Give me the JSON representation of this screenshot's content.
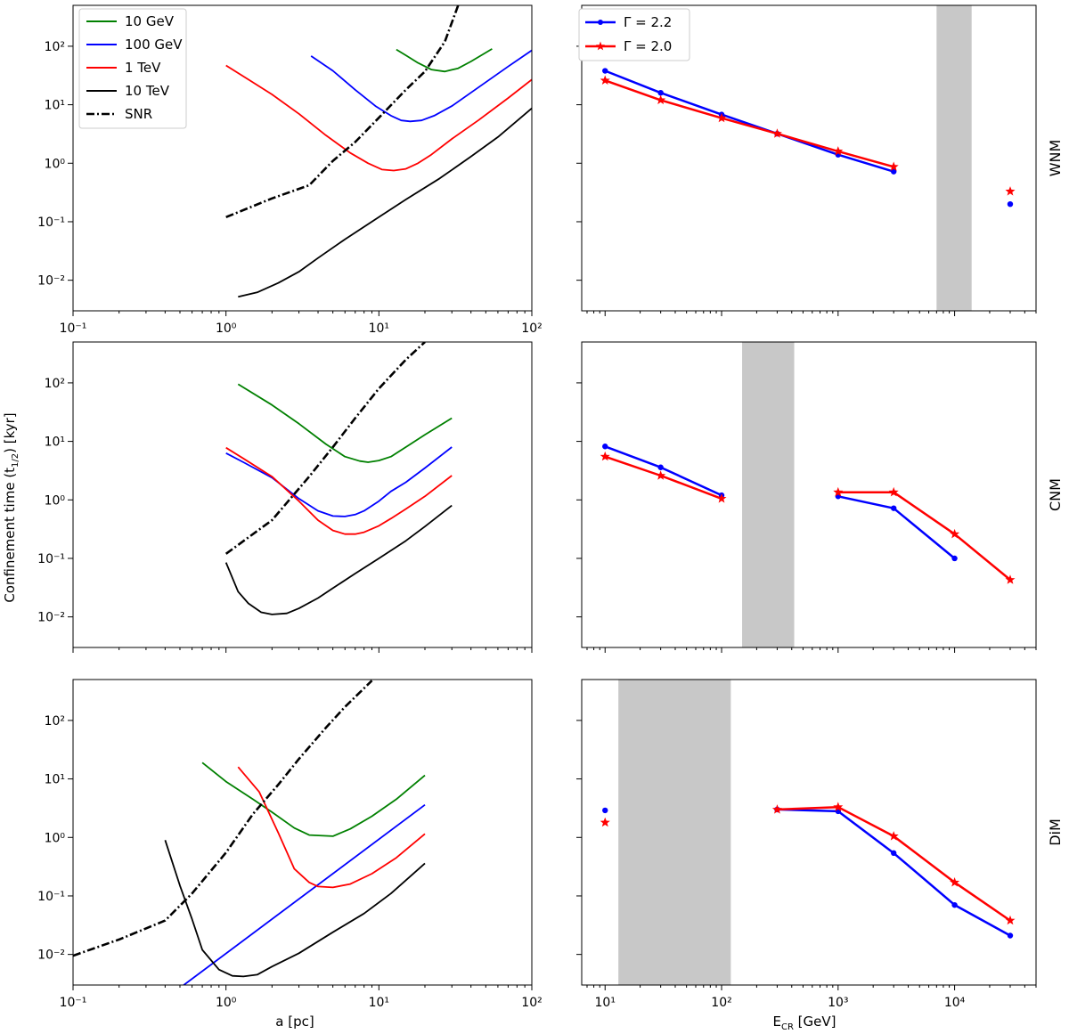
{
  "figure": {
    "ylabel": "Confinement time (t",
    "ylabel_sub": "1/2",
    "ylabel_suffix": ") [kyr]",
    "left_xlabel": "a [pc]",
    "right_xlabel": "E",
    "right_xlabel_sub": "CR",
    "right_xlabel_suffix": " [GeV]"
  },
  "legend_left": [
    "10 GeV",
    "100 GeV",
    "1 TeV",
    "10 TeV",
    "SNR"
  ],
  "legend_right": [
    "Γ = 2.2",
    "Γ = 2.0"
  ],
  "colors": {
    "10GeV": "#008000",
    "100GeV": "#0000ff",
    "1TeV": "#ff0000",
    "10TeV": "#000000",
    "SNR": "#000000",
    "gamma22": "#0000ff",
    "gamma20": "#ff0000",
    "band": "#c8c8c8"
  },
  "chart_data": [
    {
      "type": "line",
      "panel": "left-WNM",
      "xscale": "log",
      "yscale": "log",
      "xlim": [
        0.1,
        100
      ],
      "ylim": [
        0.003,
        500
      ],
      "xticks": [
        "10⁻¹",
        "10⁰",
        "10¹",
        "10²"
      ],
      "yticks": [
        "10⁻²",
        "10⁻¹",
        "10⁰",
        "10¹",
        "10²"
      ],
      "series": [
        {
          "name": "10 GeV",
          "x": [
            13,
            15,
            18,
            22,
            27,
            33,
            40,
            55
          ],
          "y": [
            88,
            70,
            52,
            40,
            37,
            42,
            55,
            90
          ]
        },
        {
          "name": "100 GeV",
          "x": [
            3.6,
            5,
            7,
            9.5,
            12,
            14,
            16,
            19,
            23,
            30,
            45,
            70,
            100
          ],
          "y": [
            68,
            38,
            18,
            9.5,
            6.5,
            5.4,
            5.2,
            5.4,
            6.5,
            9.5,
            20,
            45,
            85
          ]
        },
        {
          "name": "1 TeV",
          "x": [
            1.0,
            1.4,
            2,
            3,
            4.5,
            6.5,
            8.5,
            10.5,
            12.5,
            15,
            18,
            22,
            30,
            45,
            70,
            100
          ],
          "y": [
            47,
            27,
            15,
            7,
            3,
            1.5,
            1.0,
            0.78,
            0.75,
            0.8,
            1.0,
            1.4,
            2.6,
            5.5,
            13,
            27
          ]
        },
        {
          "name": "10 TeV",
          "x": [
            1.2,
            1.6,
            2.2,
            3,
            4,
            6,
            10,
            15,
            25,
            40,
            60,
            100
          ],
          "y": [
            0.0052,
            0.0062,
            0.009,
            0.014,
            0.024,
            0.05,
            0.12,
            0.24,
            0.55,
            1.3,
            2.8,
            8.7
          ]
        },
        {
          "name": "SNR",
          "x": [
            1.0,
            2,
            3.5,
            5,
            7,
            10,
            15,
            20,
            27,
            33
          ],
          "y": [
            0.12,
            0.25,
            0.42,
            1.1,
            2.3,
            6,
            18,
            37,
            120,
            500
          ],
          "dash": "dashdot"
        }
      ]
    },
    {
      "type": "line",
      "panel": "left-CNM",
      "xscale": "log",
      "yscale": "log",
      "xlim": [
        0.1,
        100
      ],
      "ylim": [
        0.003,
        500
      ],
      "yticks": [
        "10⁻²",
        "10⁻¹",
        "10⁰",
        "10¹",
        "10²"
      ],
      "series": [
        {
          "name": "10 GeV",
          "x": [
            1.2,
            2,
            3,
            4.5,
            6,
            7.5,
            8.5,
            10,
            12,
            15,
            20,
            30
          ],
          "y": [
            95,
            42,
            20,
            9,
            5.5,
            4.6,
            4.4,
            4.7,
            5.5,
            8,
            13,
            25
          ]
        },
        {
          "name": "100 GeV",
          "x": [
            1.0,
            1.3,
            2,
            3,
            4,
            5,
            6,
            7,
            8,
            10,
            12,
            15,
            20,
            30
          ],
          "y": [
            6.3,
            4.4,
            2.4,
            1.05,
            0.65,
            0.53,
            0.52,
            0.56,
            0.65,
            0.95,
            1.4,
            2,
            3.5,
            8
          ]
        },
        {
          "name": "1 TeV",
          "x": [
            1.0,
            1.3,
            2,
            3,
            4,
            5,
            6,
            7,
            8,
            10,
            12,
            15,
            20,
            30
          ],
          "y": [
            7.8,
            5.1,
            2.5,
            0.95,
            0.45,
            0.3,
            0.26,
            0.26,
            0.28,
            0.36,
            0.48,
            0.7,
            1.15,
            2.6
          ]
        },
        {
          "name": "10 TeV",
          "x": [
            1.0,
            1.2,
            1.4,
            1.7,
            2,
            2.5,
            3,
            4,
            5,
            7,
            10,
            15,
            20,
            30
          ],
          "y": [
            0.085,
            0.027,
            0.017,
            0.012,
            0.011,
            0.0115,
            0.014,
            0.021,
            0.031,
            0.055,
            0.1,
            0.2,
            0.35,
            0.8
          ]
        },
        {
          "name": "SNR",
          "x": [
            1.0,
            2,
            3.5,
            5,
            7,
            10,
            15,
            20
          ],
          "y": [
            0.12,
            0.45,
            2.5,
            8,
            25,
            80,
            250,
            500
          ],
          "dash": "dashdot"
        }
      ]
    },
    {
      "type": "line",
      "panel": "left-DiM",
      "xscale": "log",
      "yscale": "log",
      "xlim": [
        0.1,
        100
      ],
      "ylim": [
        0.003,
        500
      ],
      "xlabel": "a [pc]",
      "xticks": [
        "10⁻¹",
        "10⁰",
        "10¹",
        "10²"
      ],
      "yticks": [
        "10⁻²",
        "10⁻¹",
        "10⁰",
        "10¹",
        "10²"
      ],
      "series": [
        {
          "name": "10 GeV",
          "x": [
            0.7,
            1,
            1.5,
            2,
            2.8,
            3.5,
            5,
            6.5,
            9,
            13,
            20
          ],
          "y": [
            19,
            9,
            4.5,
            2.7,
            1.45,
            1.1,
            1.05,
            1.4,
            2.3,
            4.5,
            11.5
          ]
        },
        {
          "name": "100 GeV",
          "x": [
            0.53,
            20
          ],
          "y": [
            0.003,
            3.6
          ]
        },
        {
          "name": "1 TeV",
          "x": [
            1.2,
            1.65,
            2.2,
            2.8,
            3.5,
            4,
            5,
            6.5,
            9,
            13,
            20
          ],
          "y": [
            16,
            6,
            1.2,
            0.29,
            0.17,
            0.145,
            0.14,
            0.16,
            0.24,
            0.45,
            1.15
          ]
        },
        {
          "name": "10 TeV",
          "x": [
            0.4,
            0.5,
            0.6,
            0.7,
            0.9,
            1.1,
            1.3,
            1.6,
            2,
            3,
            5,
            8,
            12,
            20
          ],
          "y": [
            0.9,
            0.15,
            0.04,
            0.012,
            0.0055,
            0.0043,
            0.0042,
            0.0045,
            0.0062,
            0.0105,
            0.024,
            0.05,
            0.11,
            0.36
          ]
        },
        {
          "name": "SNR",
          "x": [
            0.1,
            0.2,
            0.4,
            0.6,
            1,
            1.5,
            2.2,
            3,
            4.5,
            6,
            9
          ],
          "y": [
            0.0095,
            0.018,
            0.038,
            0.11,
            0.55,
            2.5,
            8,
            22,
            75,
            170,
            480
          ],
          "dash": "dashdot"
        }
      ]
    },
    {
      "type": "line",
      "panel": "right-WNM",
      "label": "WNM",
      "xscale": "log",
      "yscale": "log",
      "xlim": [
        6.3,
        50000
      ],
      "ylim": [
        0.003,
        500
      ],
      "band": [
        7000,
        14000
      ],
      "series": [
        {
          "name": "Γ = 2.2",
          "marker": "circle",
          "segments": [
            {
              "x": [
                10,
                30,
                100,
                300,
                1000,
                3000
              ],
              "y": [
                38,
                16,
                6.8,
                3.2,
                1.4,
                0.72
              ]
            },
            {
              "x": [
                30000
              ],
              "y": [
                0.2
              ]
            }
          ]
        },
        {
          "name": "Γ = 2.0",
          "marker": "star",
          "segments": [
            {
              "x": [
                10,
                30,
                100,
                300,
                1000,
                3000
              ],
              "y": [
                26,
                12,
                5.9,
                3.2,
                1.6,
                0.87
              ]
            },
            {
              "x": [
                30000
              ],
              "y": [
                0.33
              ]
            }
          ]
        }
      ]
    },
    {
      "type": "line",
      "panel": "right-CNM",
      "label": "CNM",
      "xscale": "log",
      "yscale": "log",
      "xlim": [
        6.3,
        50000
      ],
      "ylim": [
        0.003,
        500
      ],
      "band": [
        150,
        420
      ],
      "series": [
        {
          "name": "Γ = 2.2",
          "marker": "circle",
          "segments": [
            {
              "x": [
                10,
                30,
                100
              ],
              "y": [
                8.2,
                3.6,
                1.2
              ]
            },
            {
              "x": [
                1000,
                3000,
                10000
              ],
              "y": [
                1.15,
                0.72,
                0.1
              ]
            }
          ]
        },
        {
          "name": "Γ = 2.0",
          "marker": "star",
          "segments": [
            {
              "x": [
                10,
                30,
                100
              ],
              "y": [
                5.5,
                2.6,
                1.05
              ]
            },
            {
              "x": [
                1000,
                3000,
                10000,
                30000
              ],
              "y": [
                1.35,
                1.35,
                0.26,
                0.043
              ]
            }
          ]
        }
      ]
    },
    {
      "type": "line",
      "panel": "right-DiM",
      "label": "DiM",
      "xscale": "log",
      "yscale": "log",
      "xlim": [
        6.3,
        50000
      ],
      "ylim": [
        0.003,
        500
      ],
      "band": [
        13,
        120
      ],
      "xticks": [
        "10¹",
        "10²",
        "10³",
        "10⁴"
      ],
      "series": [
        {
          "name": "Γ = 2.2",
          "marker": "circle",
          "segments": [
            {
              "x": [
                10
              ],
              "y": [
                2.9
              ]
            },
            {
              "x": [
                300,
                1000,
                3000,
                10000,
                30000
              ],
              "y": [
                3.0,
                2.8,
                0.54,
                0.07,
                0.021
              ]
            }
          ]
        },
        {
          "name": "Γ = 2.0",
          "marker": "star",
          "segments": [
            {
              "x": [
                10
              ],
              "y": [
                1.8
              ]
            },
            {
              "x": [
                300,
                1000,
                3000,
                10000,
                30000
              ],
              "y": [
                3.0,
                3.3,
                1.05,
                0.17,
                0.038
              ]
            }
          ]
        }
      ]
    }
  ]
}
